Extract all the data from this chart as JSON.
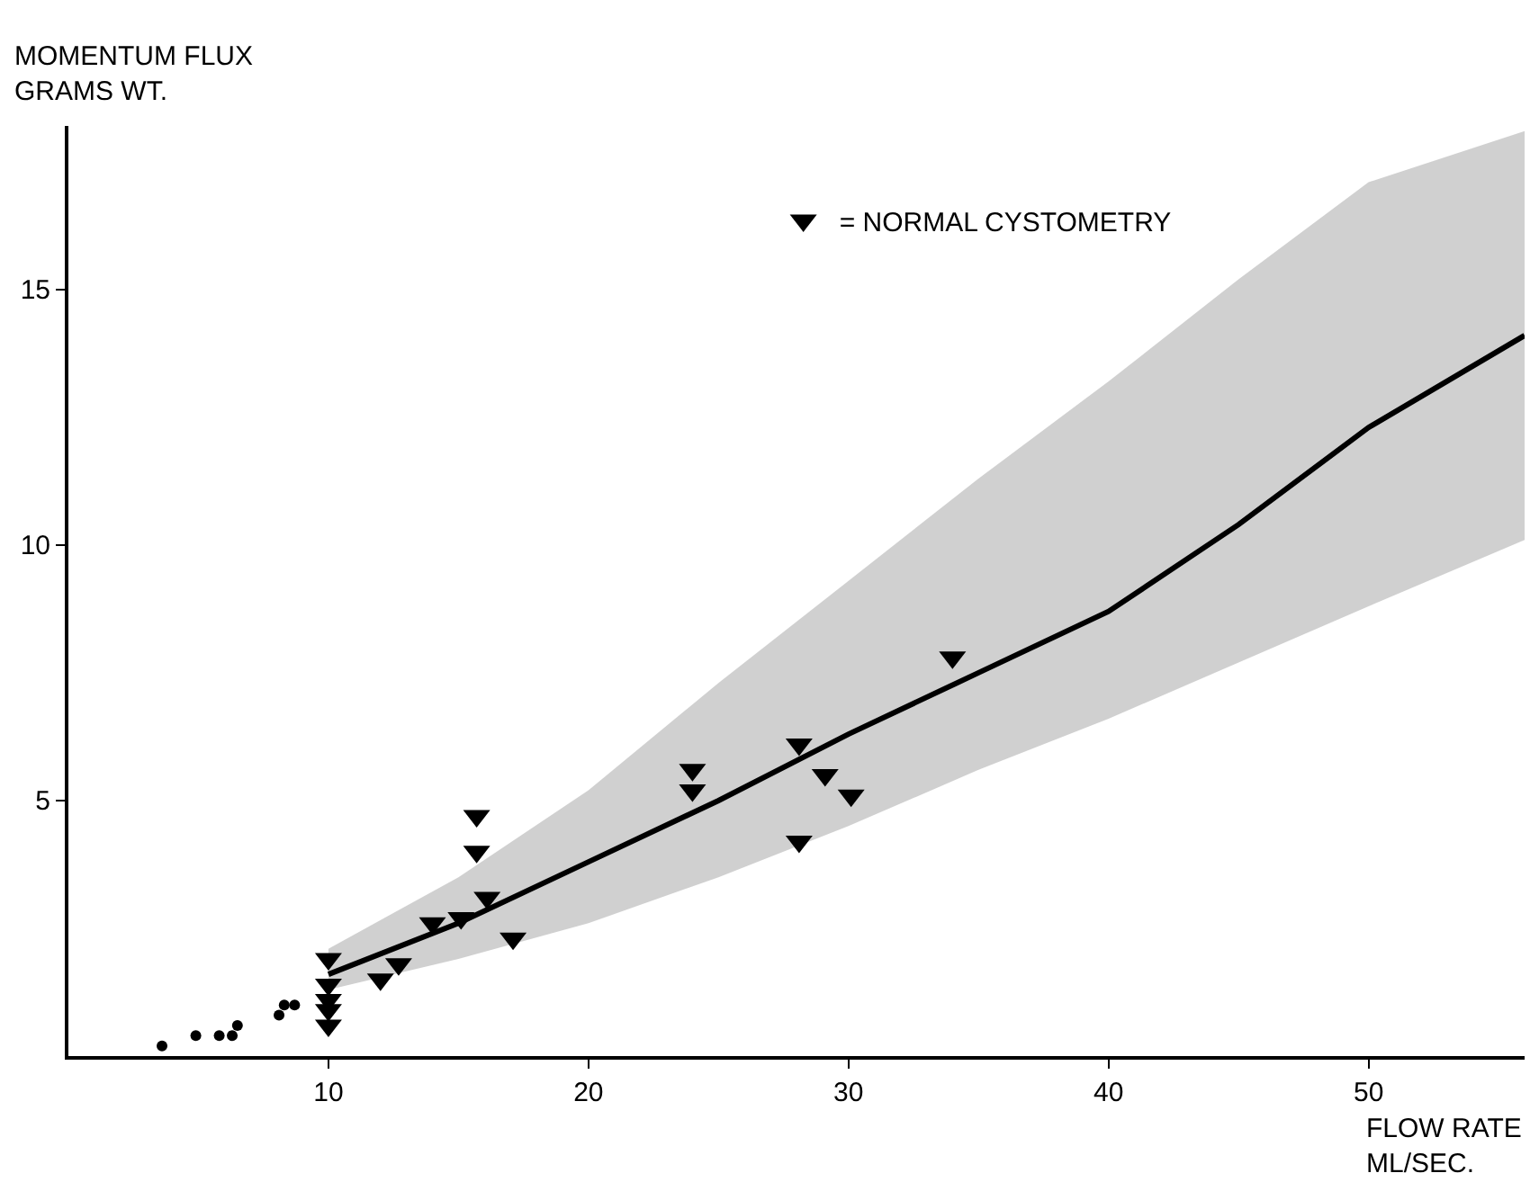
{
  "chart_data": {
    "type": "scatter",
    "xlabel": "FLOW RATE\nML/SEC.",
    "ylabel": "MOMENTUM FLUX\nGRAMS WT.",
    "xlim": [
      0,
      56
    ],
    "ylim": [
      0,
      18.2
    ],
    "xticks": [
      10,
      20,
      30,
      40,
      50
    ],
    "yticks": [
      5,
      10,
      15
    ],
    "legend": "top right",
    "series": [
      {
        "marker": "circle",
        "color": "#000000",
        "x": [
          3.6,
          4.9,
          5.8,
          6.3,
          6.5,
          8.1,
          8.3,
          8.7
        ],
        "values": [
          0.2,
          0.4,
          0.4,
          0.4,
          0.6,
          0.8,
          1.0,
          1.0
        ]
      },
      {
        "marker": "triangle",
        "name": "= NORMAL CYSTOMETRY",
        "color": "#000000",
        "x": [
          10,
          10,
          10,
          10,
          10,
          12.0,
          12.7,
          14.0,
          15.1,
          15.7,
          15.7,
          16.1,
          17.1,
          24.0,
          24.0,
          28.1,
          28.1,
          29.1,
          30.1,
          34.0
        ],
        "values": [
          1.9,
          1.4,
          1.1,
          0.9,
          0.6,
          1.5,
          1.8,
          2.6,
          2.7,
          4.7,
          4.0,
          3.1,
          2.3,
          5.6,
          5.2,
          6.1,
          4.2,
          5.5,
          5.1,
          7.8
        ]
      },
      {
        "type": "line",
        "marker": "none",
        "line_style": "solid",
        "color": "#000000",
        "x": [
          10,
          15,
          20,
          25,
          30,
          35,
          40,
          45,
          50,
          56
        ],
        "values": [
          1.6,
          2.6,
          3.8,
          5.0,
          6.3,
          7.5,
          8.7,
          10.4,
          12.3,
          14.1
        ],
        "lower": [
          1.3,
          1.9,
          2.6,
          3.5,
          4.5,
          5.6,
          6.6,
          7.7,
          8.8,
          10.1
        ],
        "upper": [
          2.1,
          3.5,
          5.2,
          7.3,
          9.3,
          11.3,
          13.2,
          15.2,
          17.1,
          18.1
        ]
      }
    ]
  }
}
